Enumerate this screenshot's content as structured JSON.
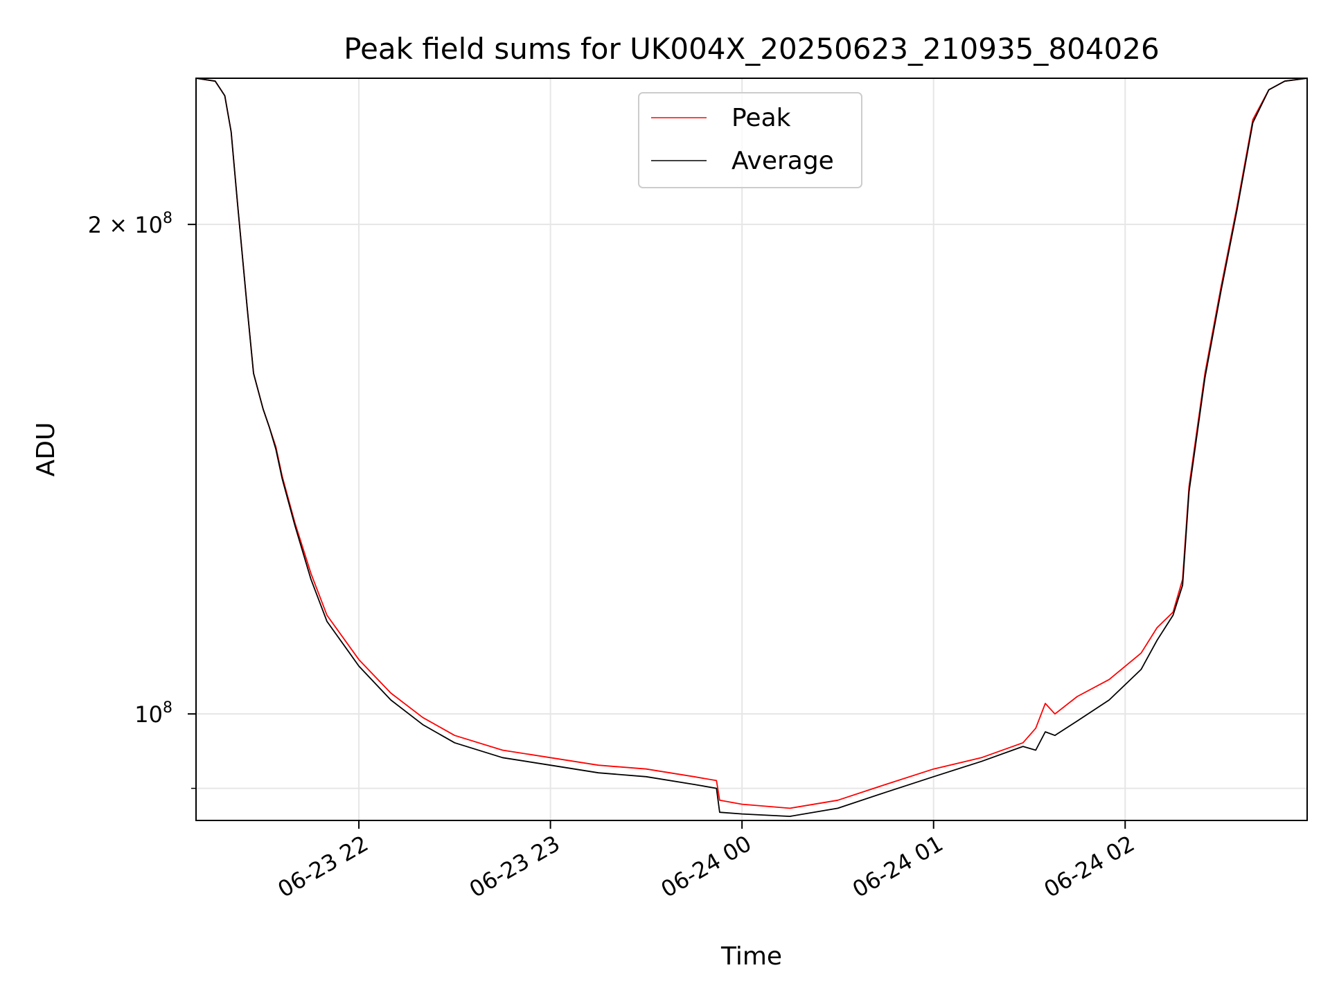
{
  "chart_data": {
    "type": "line",
    "title": "Peak field sums for UK004X_20250623_210935_804026",
    "xlabel": "Time",
    "ylabel": "ADU",
    "x_unit": "datetime",
    "xlim": [
      "2025-06-23 21:09",
      "2025-06-24 02:57"
    ],
    "ylim": [
      86000000,
      246000000
    ],
    "y_scale": "log",
    "x_ticks": [
      {
        "t": "2025-06-23 22:00",
        "label": "06-23 22"
      },
      {
        "t": "2025-06-23 23:00",
        "label": "06-23 23"
      },
      {
        "t": "2025-06-24 00:00",
        "label": "06-24 00"
      },
      {
        "t": "2025-06-24 01:00",
        "label": "06-24 01"
      },
      {
        "t": "2025-06-24 02:00",
        "label": "06-24 02"
      }
    ],
    "y_major_ticks": [
      {
        "value": 100000000,
        "label": "10",
        "exp": "8"
      },
      {
        "value": 200000000,
        "label": "2 × 10",
        "exp": "8"
      }
    ],
    "grid": true,
    "legend_position": "top-center",
    "series": [
      {
        "name": "Peak",
        "color": "#ff0000",
        "x": [
          "2025-06-23 21:09",
          "2025-06-23 21:15",
          "2025-06-23 21:18",
          "2025-06-23 21:20",
          "2025-06-23 21:22",
          "2025-06-23 21:25",
          "2025-06-23 21:27",
          "2025-06-23 21:30",
          "2025-06-23 21:32",
          "2025-06-23 21:34",
          "2025-06-23 21:36",
          "2025-06-23 21:40",
          "2025-06-23 21:45",
          "2025-06-23 21:50",
          "2025-06-23 22:00",
          "2025-06-23 22:10",
          "2025-06-23 22:20",
          "2025-06-23 22:30",
          "2025-06-23 22:45",
          "2025-06-23 23:00",
          "2025-06-23 23:15",
          "2025-06-23 23:30",
          "2025-06-23 23:45",
          "2025-06-23 23:52",
          "2025-06-23 23:53",
          "2025-06-24 00:00",
          "2025-06-24 00:15",
          "2025-06-24 00:30",
          "2025-06-24 00:45",
          "2025-06-24 01:00",
          "2025-06-24 01:15",
          "2025-06-24 01:28",
          "2025-06-24 01:32",
          "2025-06-24 01:35",
          "2025-06-24 01:38",
          "2025-06-24 01:45",
          "2025-06-24 01:55",
          "2025-06-24 02:05",
          "2025-06-24 02:10",
          "2025-06-24 02:15",
          "2025-06-24 02:18",
          "2025-06-24 02:20",
          "2025-06-24 02:25",
          "2025-06-24 02:30",
          "2025-06-24 02:35",
          "2025-06-24 02:40",
          "2025-06-24 02:45",
          "2025-06-24 02:50",
          "2025-06-24 02:57"
        ],
        "values": [
          246000000,
          245000000,
          240000000,
          228000000,
          206000000,
          178000000,
          162000000,
          154000000,
          150000000,
          146000000,
          140000000,
          131000000,
          122000000,
          115000000,
          108000000,
          103000000,
          99500000,
          97000000,
          95000000,
          94000000,
          93000000,
          92500000,
          91500000,
          91000000,
          88500000,
          88000000,
          87500000,
          88500000,
          90500000,
          92500000,
          94000000,
          96000000,
          98000000,
          101500000,
          100000000,
          102500000,
          105000000,
          109000000,
          113000000,
          115500000,
          121000000,
          138000000,
          162000000,
          183000000,
          205000000,
          232000000,
          242000000,
          245000000,
          246000000
        ]
      },
      {
        "name": "Average",
        "color": "#000000",
        "x": [
          "2025-06-23 21:09",
          "2025-06-23 21:15",
          "2025-06-23 21:18",
          "2025-06-23 21:20",
          "2025-06-23 21:22",
          "2025-06-23 21:25",
          "2025-06-23 21:27",
          "2025-06-23 21:30",
          "2025-06-23 21:32",
          "2025-06-23 21:34",
          "2025-06-23 21:36",
          "2025-06-23 21:40",
          "2025-06-23 21:45",
          "2025-06-23 21:50",
          "2025-06-23 22:00",
          "2025-06-23 22:10",
          "2025-06-23 22:20",
          "2025-06-23 22:30",
          "2025-06-23 22:45",
          "2025-06-23 23:00",
          "2025-06-23 23:15",
          "2025-06-23 23:30",
          "2025-06-23 23:45",
          "2025-06-23 23:52",
          "2025-06-23 23:53",
          "2025-06-24 00:00",
          "2025-06-24 00:15",
          "2025-06-24 00:30",
          "2025-06-24 00:45",
          "2025-06-24 01:00",
          "2025-06-24 01:15",
          "2025-06-24 01:28",
          "2025-06-24 01:32",
          "2025-06-24 01:35",
          "2025-06-24 01:38",
          "2025-06-24 01:45",
          "2025-06-24 01:55",
          "2025-06-24 02:05",
          "2025-06-24 02:10",
          "2025-06-24 02:15",
          "2025-06-24 02:18",
          "2025-06-24 02:20",
          "2025-06-24 02:25",
          "2025-06-24 02:30",
          "2025-06-24 02:35",
          "2025-06-24 02:40",
          "2025-06-24 02:45",
          "2025-06-24 02:50",
          "2025-06-24 02:57"
        ],
        "values": [
          246000000,
          245000000,
          240000000,
          228000000,
          206000000,
          178000000,
          162000000,
          154000000,
          150000000,
          145500000,
          139500000,
          130500000,
          121000000,
          114000000,
          107000000,
          102000000,
          98500000,
          96000000,
          94000000,
          93000000,
          92000000,
          91500000,
          90500000,
          90000000,
          87000000,
          86800000,
          86500000,
          87500000,
          89500000,
          91500000,
          93500000,
          95500000,
          95000000,
          97500000,
          97000000,
          99000000,
          102000000,
          106500000,
          111000000,
          115000000,
          120000000,
          137000000,
          161000000,
          182000000,
          204000000,
          231000000,
          242000000,
          245000000,
          246000000
        ]
      }
    ]
  }
}
